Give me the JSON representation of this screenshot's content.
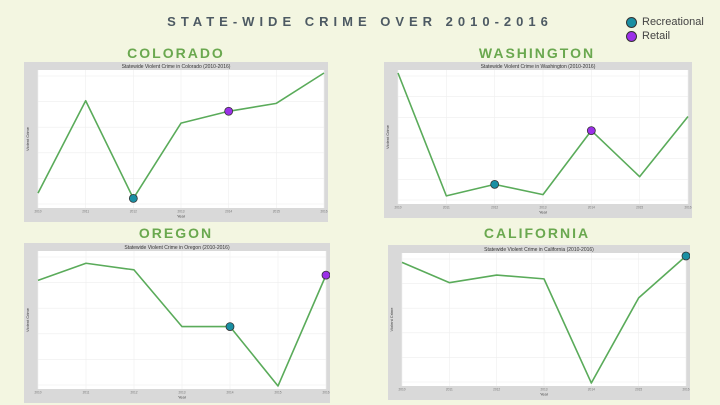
{
  "page_title": "STATE-WIDE CRIME OVER 2010-2016",
  "legend": [
    {
      "label": "Recreational",
      "color": "#1a8fa3"
    },
    {
      "label": "Retail",
      "color": "#9b30e8"
    }
  ],
  "line_color": "#5aab5a",
  "chart_data": [
    {
      "type": "line",
      "state": "COLORADO",
      "title": "Statewide Violent Crime in Colorado (2010-2016)",
      "xlabel": "Year",
      "ylabel": "Violent Crime",
      "x": [
        "2010",
        "2011",
        "2012",
        "2013",
        "2014",
        "2015",
        "2016"
      ],
      "y": [
        0.09,
        0.79,
        0.05,
        0.62,
        0.71,
        0.77,
        1.0
      ],
      "markers": [
        {
          "index": 2,
          "type": "Recreational"
        },
        {
          "index": 4,
          "type": "Retail"
        }
      ],
      "y_ticks": [
        "",
        "",
        "",
        "",
        "",
        ""
      ]
    },
    {
      "type": "line",
      "state": "WASHINGTON",
      "title": "Statewide Violent Crime in Washington (2010-2016)",
      "xlabel": "Year",
      "ylabel": "Violent Crime",
      "x": [
        "2010",
        "2011",
        "2012",
        "2013",
        "2014",
        "2015",
        "2016"
      ],
      "y": [
        1.0,
        0.04,
        0.13,
        0.05,
        0.55,
        0.19,
        0.66
      ],
      "markers": [
        {
          "index": 2,
          "type": "Recreational"
        },
        {
          "index": 4,
          "type": "Retail"
        }
      ],
      "y_ticks": [
        "",
        "",
        "",
        "",
        "",
        "",
        ""
      ]
    },
    {
      "type": "line",
      "state": "OREGON",
      "title": "Statewide Violent Crime in Oregon (2010-2016)",
      "xlabel": "Year",
      "ylabel": "Violent Crime",
      "x": [
        "2010",
        "2011",
        "2012",
        "2013",
        "2014",
        "2015",
        "2016"
      ],
      "y": [
        0.8,
        0.93,
        0.88,
        0.45,
        0.45,
        0.0,
        0.84
      ],
      "markers": [
        {
          "index": 4,
          "type": "Recreational"
        },
        {
          "index": 6,
          "type": "Retail"
        }
      ],
      "y_ticks": [
        "",
        "",
        "",
        "",
        "",
        ""
      ]
    },
    {
      "type": "line",
      "state": "CALIFORNIA",
      "title": "Statewide Violent Crime in California (2010-2016)",
      "xlabel": "Year",
      "ylabel": "Violent Crime",
      "x": [
        "2010",
        "2011",
        "2012",
        "2013",
        "2014",
        "2015",
        "2016"
      ],
      "y": [
        0.95,
        0.79,
        0.85,
        0.82,
        0.0,
        0.67,
        1.0
      ],
      "markers": [
        {
          "index": 6,
          "type": "Recreational"
        }
      ],
      "y_ticks": [
        "",
        "",
        "",
        "",
        "",
        ""
      ]
    }
  ]
}
